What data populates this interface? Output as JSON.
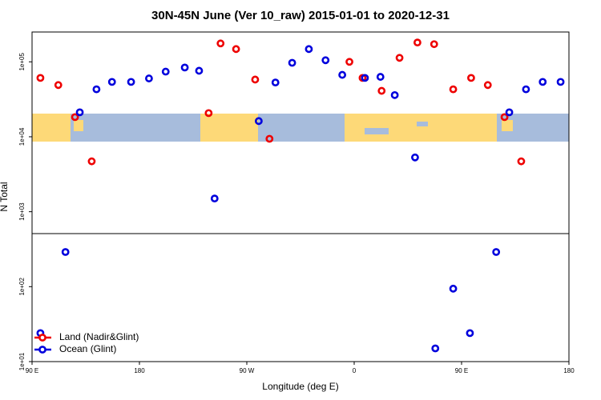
{
  "chart_data": {
    "type": "scatter",
    "title": "30N-45N June (Ver 10_raw)   2015-01-01 to 2020-12-31",
    "x_label": "Longitude (deg E)",
    "y_label": "N Total",
    "xlim": [
      90,
      540
    ],
    "xticks": [
      {
        "value": 90,
        "label": "90 E"
      },
      180,
      {
        "value": 270,
        "label": "90 W"
      },
      {
        "value": 360,
        "label": "0"
      },
      {
        "value": 450,
        "label": "90 E"
      },
      {
        "value": 540,
        "label": "180"
      }
    ],
    "ylim": [
      10,
      250000
    ],
    "log_y": true,
    "yticks": [
      {
        "value": 10,
        "label": "1e+01"
      },
      {
        "value": 100,
        "label": "1e+02"
      },
      {
        "value": 1000,
        "label": "1e+03"
      },
      {
        "value": 10000,
        "label": "1e+04"
      },
      {
        "value": 100000,
        "label": "1e+05"
      }
    ],
    "legend": "lower left",
    "series": [
      {
        "name": "Land (Nadir&Glint)",
        "color": "#ee0000",
        "x": [
          97,
          112,
          126,
          140,
          238,
          248,
          261,
          277,
          289,
          356,
          367,
          383,
          398,
          413,
          427,
          443,
          458,
          472,
          486,
          500
        ],
        "values": [
          61000,
          49000,
          18300,
          4700,
          20700,
          176000,
          148000,
          58000,
          9400,
          100000,
          61000,
          41000,
          113000,
          181000,
          172000,
          43000,
          61000,
          49000,
          18300,
          4700
        ]
      },
      {
        "name": "Ocean (Glint)",
        "color": "#0000dd",
        "x": [
          97,
          118,
          130,
          144,
          157,
          173,
          188,
          202,
          218,
          230,
          243,
          280,
          294,
          308,
          322,
          336,
          350,
          369,
          382,
          394,
          411,
          428,
          443,
          457,
          479,
          490,
          504,
          518,
          533
        ],
        "values": [
          24,
          290,
          21200,
          43000,
          54000,
          54000,
          60000,
          74000,
          84000,
          76000,
          1500,
          16200,
          53000,
          97000,
          148000,
          105000,
          67000,
          61000,
          63000,
          36000,
          5300,
          15,
          94,
          24,
          290,
          21200,
          43000,
          54000,
          54000
        ]
      }
    ]
  }
}
